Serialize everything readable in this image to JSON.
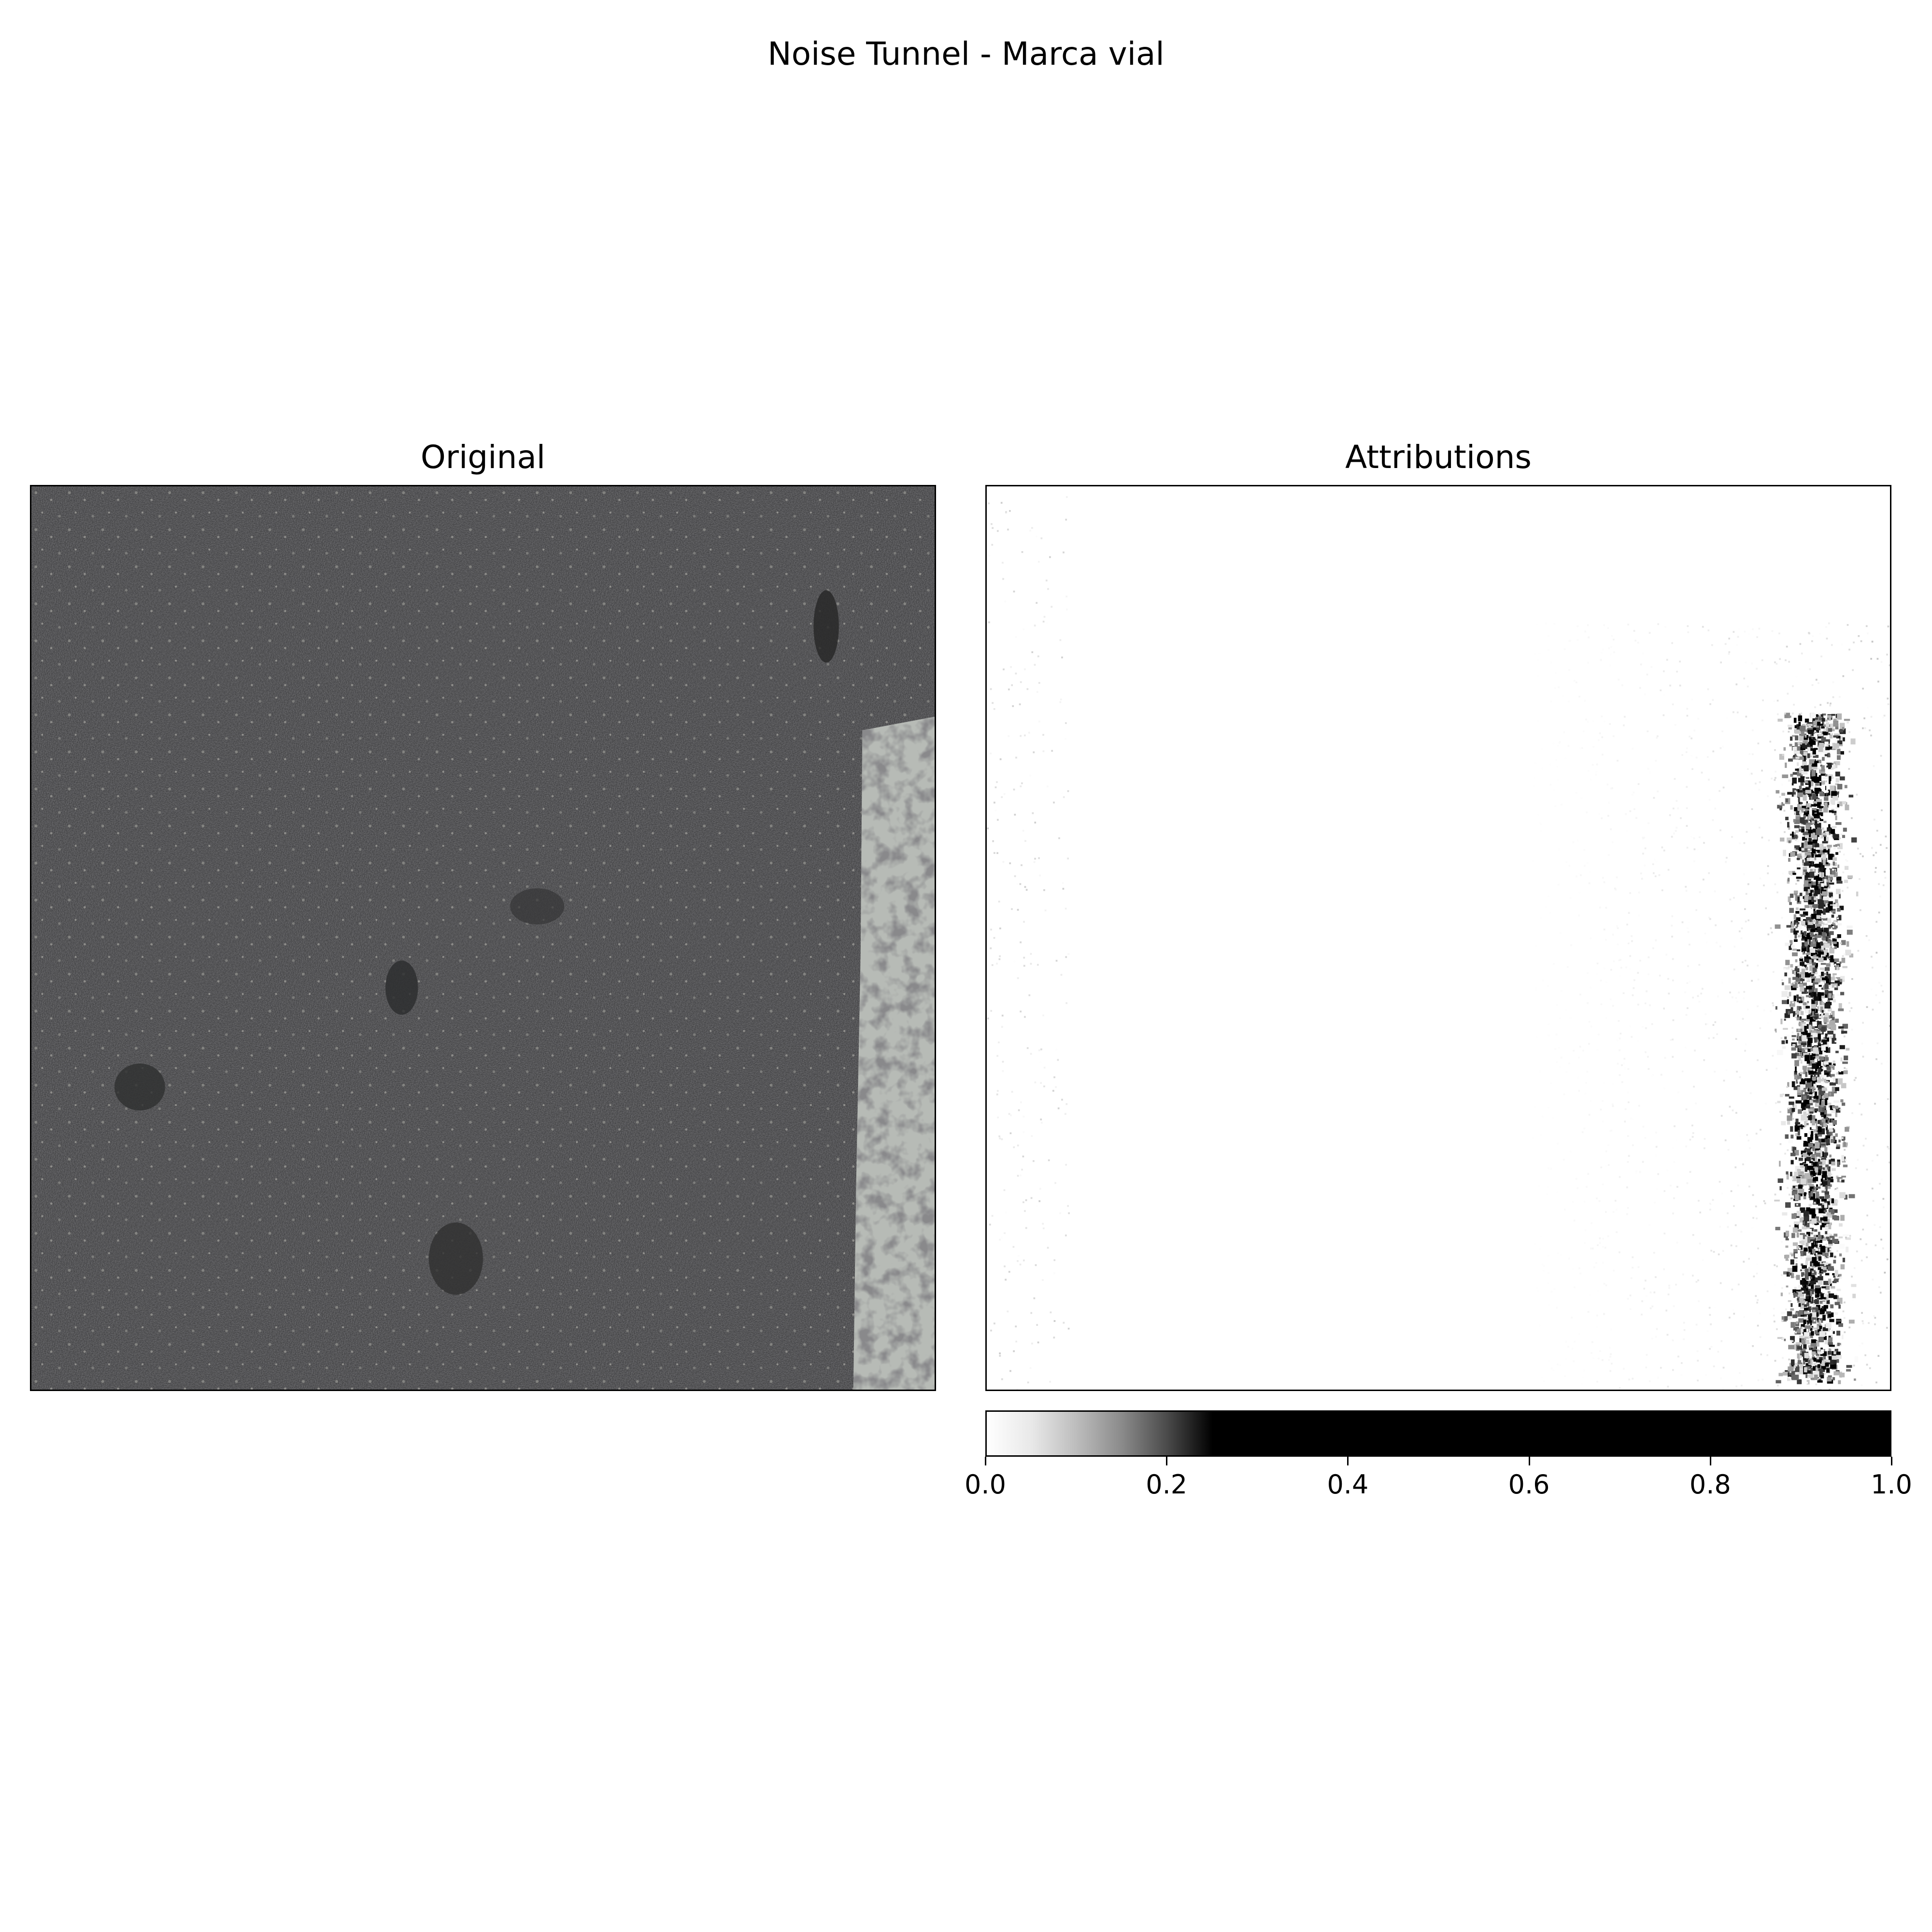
{
  "figure": {
    "title": "Noise Tunnel - Marca vial"
  },
  "panels": [
    {
      "title": "Original",
      "image": "asphalt-road-with-white-lane-marking"
    },
    {
      "title": "Attributions",
      "image": "grayscale-attribution-heatmap"
    }
  ],
  "colorbar": {
    "cmap": "Greys",
    "range": [
      0.0,
      1.0
    ],
    "saturation_point": 0.25,
    "ticks": [
      "0.0",
      "0.2",
      "0.4",
      "0.6",
      "0.8",
      "1.0"
    ],
    "tick_values": [
      0.0,
      0.2,
      0.4,
      0.6,
      0.8,
      1.0
    ]
  },
  "colors": {
    "asphalt": "#3b3b3d",
    "lane_marking": "#b9bdb8",
    "attribution_high": "#000000",
    "attribution_low": "#ffffff"
  }
}
